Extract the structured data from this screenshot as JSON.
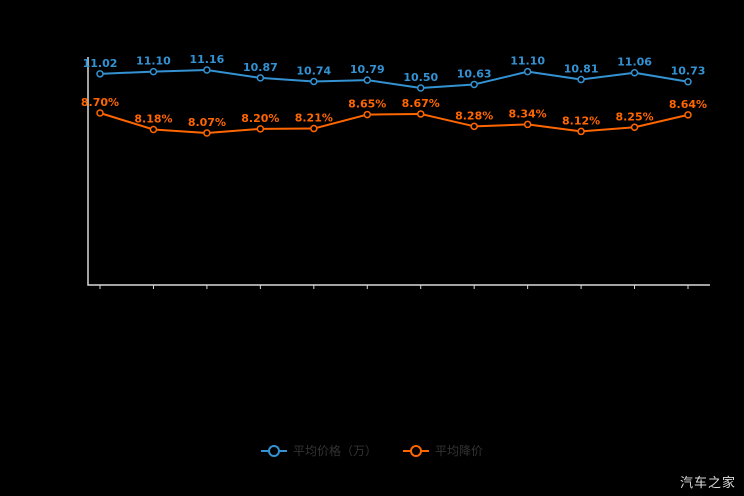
{
  "chart_data": {
    "type": "line",
    "title": "",
    "grid": false,
    "legend_position": "bottom",
    "series": [
      {
        "name": "平均价格（万）",
        "color": "#3492d2",
        "label_suffix": "",
        "values": [
          11.02,
          11.1,
          11.16,
          10.87,
          10.74,
          10.79,
          10.5,
          10.63,
          11.1,
          10.81,
          11.06,
          10.73
        ]
      },
      {
        "name": "平均降价",
        "color": "#ff6600",
        "label_suffix": "%",
        "values": [
          8.7,
          8.18,
          8.07,
          8.2,
          8.21,
          8.65,
          8.67,
          8.28,
          8.34,
          8.12,
          8.25,
          8.64
        ]
      }
    ]
  },
  "legend": {
    "price_label": "平均价格（万）",
    "discount_label": "平均降价"
  },
  "watermark": "汽车之家"
}
